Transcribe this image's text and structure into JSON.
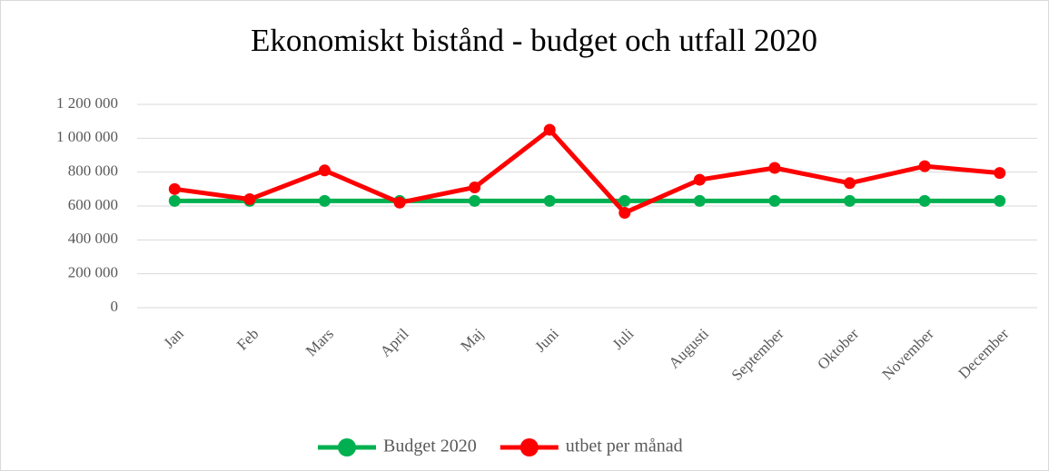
{
  "chart_data": {
    "type": "line",
    "title": "Ekonomiskt bistånd - budget och utfall 2020",
    "categories": [
      "Jan",
      "Feb",
      "Mars",
      "April",
      "Maj",
      "Juni",
      "Juli",
      "Augusti",
      "September",
      "Oktober",
      "November",
      "December"
    ],
    "series": [
      {
        "name": "Budget 2020",
        "color": "#00b050",
        "values": [
          630000,
          630000,
          630000,
          630000,
          630000,
          630000,
          630000,
          630000,
          630000,
          630000,
          630000,
          630000
        ]
      },
      {
        "name": "utbet per månad",
        "color": "#ff0000",
        "values": [
          700000,
          640000,
          810000,
          620000,
          710000,
          1050000,
          560000,
          755000,
          825000,
          735000,
          835000,
          795000
        ]
      }
    ],
    "ylim": [
      0,
      1200000
    ],
    "yticks": [
      0,
      {
        "value": 200000,
        "label": "200 000"
      },
      {
        "value": 400000,
        "label": "400 000"
      },
      {
        "value": 600000,
        "label": "600 000"
      },
      {
        "value": 800000,
        "label": "800 000"
      },
      {
        "value": 1000000,
        "label": "1 000 000"
      },
      {
        "value": 1200000,
        "label": "1 200 000"
      }
    ],
    "grid": true,
    "legend": "bottom"
  }
}
